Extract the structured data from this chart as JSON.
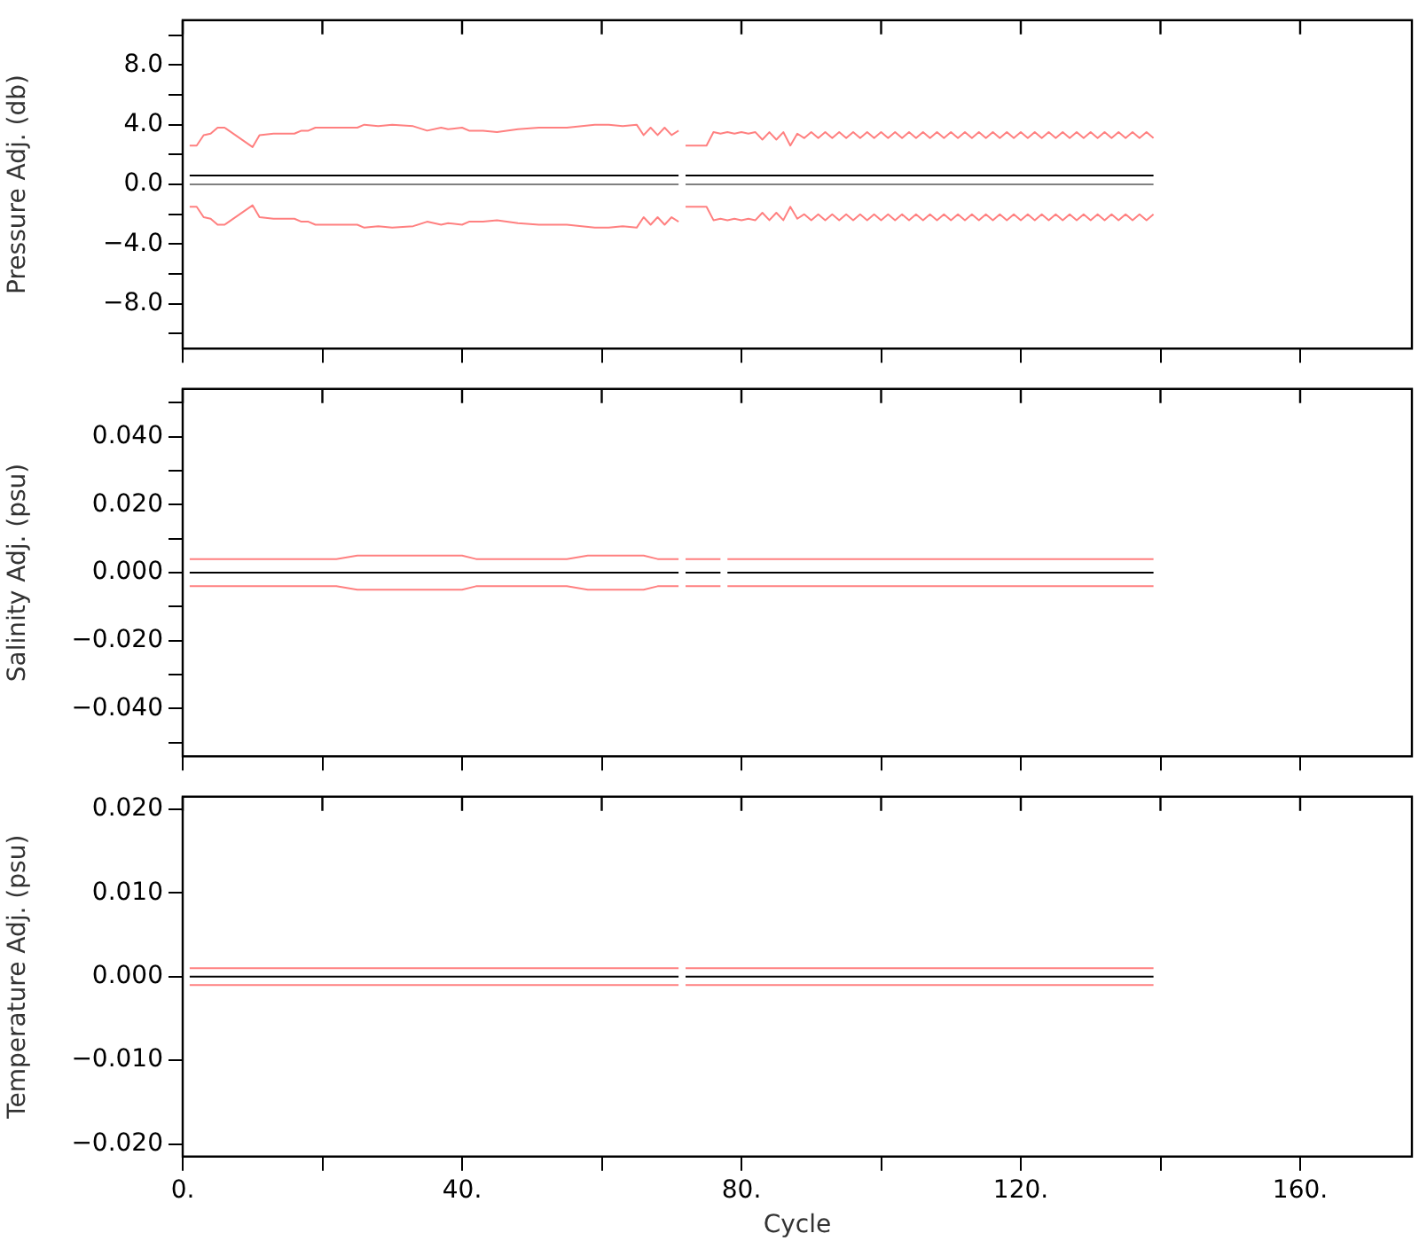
{
  "chart_data": [
    {
      "type": "line",
      "ylabel": "Pressure Adj. (db)",
      "marker": "none",
      "tick_labels": "y",
      "xlim": [
        0,
        176
      ],
      "xticks": [
        {
          "value": 0,
          "label": null
        },
        {
          "value": 20,
          "label": null
        },
        {
          "value": 40,
          "label": null
        },
        {
          "value": 60,
          "label": null
        },
        {
          "value": 80,
          "label": null
        },
        {
          "value": 100,
          "label": null
        },
        {
          "value": 120,
          "label": null
        },
        {
          "value": 140,
          "label": null
        },
        {
          "value": 160,
          "label": null
        }
      ],
      "ylim": [
        -11,
        11
      ],
      "yticks": [
        {
          "value": -10,
          "label": null
        },
        {
          "value": -8,
          "label": "−8.0"
        },
        {
          "value": -6,
          "label": null
        },
        {
          "value": -4,
          "label": "−4.0"
        },
        {
          "value": -2,
          "label": null
        },
        {
          "value": 0,
          "label": "0.0"
        },
        {
          "value": 2,
          "label": null
        },
        {
          "value": 4,
          "label": "4.0"
        },
        {
          "value": 6,
          "label": null
        },
        {
          "value": 8,
          "label": "8.0"
        },
        {
          "value": 10,
          "label": null
        }
      ],
      "series": [
        {
          "color": "#ff8080",
          "x": [
            1,
            2,
            3,
            4,
            5,
            6,
            10,
            11,
            13,
            16,
            17,
            18,
            19,
            25,
            26,
            28,
            30,
            33,
            35,
            37,
            38,
            40,
            41,
            43,
            45,
            48,
            51,
            55,
            59,
            61,
            63,
            65,
            66,
            67,
            68,
            69,
            70,
            71,
            71.5,
            72,
            75,
            76,
            77,
            78,
            79,
            80,
            81,
            82,
            83,
            84,
            85,
            86,
            87,
            88,
            89,
            90,
            91,
            92,
            93,
            94,
            95,
            96,
            97,
            98,
            99,
            100,
            101,
            102,
            103,
            104,
            105,
            106,
            107,
            108,
            109,
            110,
            111,
            112,
            113,
            114,
            115,
            116,
            117,
            118,
            119,
            120,
            121,
            122,
            123,
            124,
            125,
            126,
            127,
            128,
            129,
            130,
            131,
            132,
            133,
            134,
            135,
            136,
            137,
            138,
            139
          ],
          "values": [
            2.6,
            2.6,
            3.3,
            3.4,
            3.8,
            3.8,
            2.5,
            3.3,
            3.4,
            3.4,
            3.6,
            3.6,
            3.8,
            3.8,
            4.0,
            3.9,
            4.0,
            3.9,
            3.6,
            3.8,
            3.7,
            3.8,
            3.6,
            3.6,
            3.5,
            3.7,
            3.8,
            3.8,
            4.0,
            4.0,
            3.9,
            4.0,
            3.3,
            3.8,
            3.3,
            3.8,
            3.3,
            3.6,
            null,
            2.6,
            2.6,
            3.5,
            3.4,
            3.5,
            3.4,
            3.5,
            3.4,
            3.5,
            3.0,
            3.5,
            3.0,
            3.5,
            2.6,
            3.4,
            3.1,
            3.5,
            3.1,
            3.5,
            3.1,
            3.5,
            3.1,
            3.5,
            3.1,
            3.5,
            3.1,
            3.5,
            3.1,
            3.5,
            3.1,
            3.5,
            3.1,
            3.5,
            3.1,
            3.5,
            3.1,
            3.5,
            3.1,
            3.5,
            3.1,
            3.5,
            3.1,
            3.5,
            3.1,
            3.5,
            3.1,
            3.5,
            3.1,
            3.5,
            3.1,
            3.5,
            3.1,
            3.5,
            3.1,
            3.5,
            3.1,
            3.5,
            3.1,
            3.5,
            3.1,
            3.5,
            3.1,
            3.5,
            3.1,
            3.5,
            3.1
          ]
        },
        {
          "color": "#ff8080",
          "x": [
            1,
            2,
            3,
            4,
            5,
            6,
            10,
            11,
            13,
            16,
            17,
            18,
            19,
            25,
            26,
            28,
            30,
            33,
            35,
            37,
            38,
            40,
            41,
            43,
            45,
            48,
            51,
            55,
            59,
            61,
            63,
            65,
            66,
            67,
            68,
            69,
            70,
            71,
            71.5,
            72,
            75,
            76,
            77,
            78,
            79,
            80,
            81,
            82,
            83,
            84,
            85,
            86,
            87,
            88,
            89,
            90,
            91,
            92,
            93,
            94,
            95,
            96,
            97,
            98,
            99,
            100,
            101,
            102,
            103,
            104,
            105,
            106,
            107,
            108,
            109,
            110,
            111,
            112,
            113,
            114,
            115,
            116,
            117,
            118,
            119,
            120,
            121,
            122,
            123,
            124,
            125,
            126,
            127,
            128,
            129,
            130,
            131,
            132,
            133,
            134,
            135,
            136,
            137,
            138,
            139
          ],
          "values": [
            -1.5,
            -1.5,
            -2.2,
            -2.3,
            -2.7,
            -2.7,
            -1.4,
            -2.2,
            -2.3,
            -2.3,
            -2.5,
            -2.5,
            -2.7,
            -2.7,
            -2.9,
            -2.8,
            -2.9,
            -2.8,
            -2.5,
            -2.7,
            -2.6,
            -2.7,
            -2.5,
            -2.5,
            -2.4,
            -2.6,
            -2.7,
            -2.7,
            -2.9,
            -2.9,
            -2.8,
            -2.9,
            -2.2,
            -2.7,
            -2.2,
            -2.7,
            -2.2,
            -2.5,
            null,
            -1.5,
            -1.5,
            -2.4,
            -2.3,
            -2.4,
            -2.3,
            -2.4,
            -2.3,
            -2.4,
            -1.9,
            -2.4,
            -1.9,
            -2.4,
            -1.5,
            -2.3,
            -2.0,
            -2.4,
            -2.0,
            -2.4,
            -2.0,
            -2.4,
            -2.0,
            -2.4,
            -2.0,
            -2.4,
            -2.0,
            -2.4,
            -2.0,
            -2.4,
            -2.0,
            -2.4,
            -2.0,
            -2.4,
            -2.0,
            -2.4,
            -2.0,
            -2.4,
            -2.0,
            -2.4,
            -2.0,
            -2.4,
            -2.0,
            -2.4,
            -2.0,
            -2.4,
            -2.0,
            -2.4,
            -2.0,
            -2.4,
            -2.0,
            -2.4,
            -2.0,
            -2.4,
            -2.0,
            -2.4,
            -2.0,
            -2.4,
            -2.0,
            -2.4,
            -2.0,
            -2.4,
            -2.0,
            -2.4,
            -2.0,
            -2.4,
            -2.0
          ]
        },
        {
          "color": "#000000",
          "x": [
            1,
            71,
            71.5,
            72,
            139
          ],
          "values": [
            0.6,
            0.6,
            null,
            0.6,
            0.6
          ]
        },
        {
          "color": "#808080",
          "x": [
            1,
            71,
            71.5,
            72,
            139
          ],
          "values": [
            0,
            0,
            null,
            0,
            0
          ]
        }
      ]
    },
    {
      "type": "line",
      "ylabel": "Salinity Adj. (psu)",
      "marker": "none",
      "tick_labels": "y",
      "xlim": [
        0,
        176
      ],
      "xticks": [
        {
          "value": 0,
          "label": null
        },
        {
          "value": 20,
          "label": null
        },
        {
          "value": 40,
          "label": null
        },
        {
          "value": 60,
          "label": null
        },
        {
          "value": 80,
          "label": null
        },
        {
          "value": 100,
          "label": null
        },
        {
          "value": 120,
          "label": null
        },
        {
          "value": 140,
          "label": null
        },
        {
          "value": 160,
          "label": null
        }
      ],
      "ylim": [
        -0.054,
        0.054
      ],
      "yticks": [
        {
          "value": -0.05,
          "label": null
        },
        {
          "value": -0.04,
          "label": "−0.040"
        },
        {
          "value": -0.03,
          "label": null
        },
        {
          "value": -0.02,
          "label": "−0.020"
        },
        {
          "value": -0.01,
          "label": null
        },
        {
          "value": 0,
          "label": "0.000"
        },
        {
          "value": 0.01,
          "label": null
        },
        {
          "value": 0.02,
          "label": "0.020"
        },
        {
          "value": 0.03,
          "label": null
        },
        {
          "value": 0.04,
          "label": "0.040"
        },
        {
          "value": 0.05,
          "label": null
        }
      ],
      "series": [
        {
          "color": "#ff8080",
          "x": [
            1,
            22,
            25,
            40,
            42,
            55,
            58,
            66,
            68,
            71,
            71.5,
            72,
            77,
            77.5,
            78,
            139
          ],
          "values": [
            0.004,
            0.004,
            0.005,
            0.005,
            0.004,
            0.004,
            0.005,
            0.005,
            0.004,
            0.004,
            null,
            0.004,
            0.004,
            null,
            0.004,
            0.004
          ]
        },
        {
          "color": "#ff8080",
          "x": [
            1,
            22,
            25,
            40,
            42,
            55,
            58,
            66,
            68,
            71,
            71.5,
            72,
            77,
            77.5,
            78,
            139
          ],
          "values": [
            -0.004,
            -0.004,
            -0.005,
            -0.005,
            -0.004,
            -0.004,
            -0.005,
            -0.005,
            -0.004,
            -0.004,
            null,
            -0.004,
            -0.004,
            null,
            -0.004,
            -0.004
          ]
        },
        {
          "color": "#000000",
          "x": [
            1,
            71,
            71.5,
            72,
            77,
            77.5,
            78,
            139
          ],
          "values": [
            0,
            0,
            null,
            0,
            0,
            null,
            0,
            0
          ]
        }
      ]
    },
    {
      "type": "line",
      "ylabel": "Temperature Adj. (psu)",
      "xlabel": "Cycle",
      "marker": "none",
      "xlim": [
        0,
        176
      ],
      "xticks": [
        {
          "value": 0,
          "label": "0."
        },
        {
          "value": 20,
          "label": null
        },
        {
          "value": 40,
          "label": "40."
        },
        {
          "value": 60,
          "label": null
        },
        {
          "value": 80,
          "label": "80."
        },
        {
          "value": 100,
          "label": null
        },
        {
          "value": 120,
          "label": "120."
        },
        {
          "value": 140,
          "label": null
        },
        {
          "value": 160,
          "label": "160."
        }
      ],
      "ylim": [
        -0.0215,
        0.0215
      ],
      "yticks": [
        {
          "value": -0.02,
          "label": "−0.020"
        },
        {
          "value": -0.01,
          "label": "−0.010"
        },
        {
          "value": 0,
          "label": "0.000"
        },
        {
          "value": 0.01,
          "label": "0.010"
        },
        {
          "value": 0.02,
          "label": "0.020"
        }
      ],
      "series": [
        {
          "color": "#ff8080",
          "x": [
            1,
            71,
            71.5,
            72,
            139
          ],
          "values": [
            0.001,
            0.001,
            null,
            0.001,
            0.001
          ]
        },
        {
          "color": "#ff8080",
          "x": [
            1,
            71,
            71.5,
            72,
            139
          ],
          "values": [
            -0.001,
            -0.001,
            null,
            -0.001,
            -0.001
          ]
        },
        {
          "color": "#000000",
          "x": [
            1,
            71,
            71.5,
            72,
            139
          ],
          "values": [
            0,
            0,
            null,
            0,
            0
          ]
        }
      ]
    }
  ]
}
